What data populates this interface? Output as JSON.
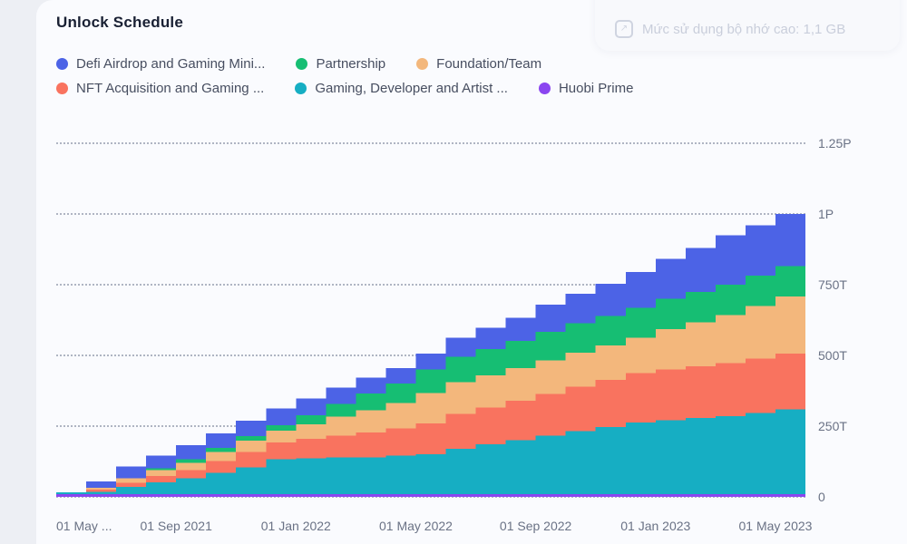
{
  "header": {
    "title": "Unlock Schedule"
  },
  "notification": {
    "text": "Mức sử dụng bộ nhớ cao: 1,1 GB",
    "icon": "external-link-icon"
  },
  "page": {
    "background": "#EDEFF4",
    "card_background": "#FAFBFE",
    "gridline_color": "#AFB5C3",
    "axis_text_color": "#6A7285"
  },
  "chart_data": {
    "type": "area",
    "variant": "stacked-step-area (monthly token unlock schedule)",
    "title": "Unlock Schedule",
    "unit": "tokens (T = trillion, P = quadrillion)",
    "grid": "dotted horizontal lines",
    "legend_position": "top-left, two rows",
    "y_max": 1250,
    "y_ticks": [
      {
        "label": "0",
        "value": 0
      },
      {
        "label": "250T",
        "value": 250
      },
      {
        "label": "500T",
        "value": 500
      },
      {
        "label": "750T",
        "value": 750
      },
      {
        "label": "1P",
        "value": 1000
      },
      {
        "label": "1.25P",
        "value": 1250
      }
    ],
    "x": [
      "May 2021",
      "Jun 2021",
      "Jul 2021",
      "Aug 2021",
      "Sep 2021",
      "Oct 2021",
      "Nov 2021",
      "Dec 2021",
      "Jan 2022",
      "Feb 2022",
      "Mar 2022",
      "Apr 2022",
      "May 2022",
      "Jun 2022",
      "Jul 2022",
      "Aug 2022",
      "Sep 2022",
      "Oct 2022",
      "Nov 2022",
      "Dec 2022",
      "Jan 2023",
      "Feb 2023",
      "Mar 2023",
      "Apr 2023",
      "May 2023"
    ],
    "x_ticks": [
      {
        "label": "01 May ...",
        "month_index": 0
      },
      {
        "label": "01 Sep 2021",
        "month_index": 4
      },
      {
        "label": "01 Jan 2022",
        "month_index": 8
      },
      {
        "label": "01 May 2022",
        "month_index": 12
      },
      {
        "label": "01 Sep 2022",
        "month_index": 16
      },
      {
        "label": "01 Jan 2023",
        "month_index": 20
      },
      {
        "label": "01 May 2023",
        "month_index": 24
      }
    ],
    "legend": [
      {
        "label": "Defi Airdrop and Gaming Mini...",
        "color": "#4C63E6"
      },
      {
        "label": "Partnership",
        "color": "#16BE73"
      },
      {
        "label": "Foundation/Team",
        "color": "#F3B77C"
      },
      {
        "label": "NFT Acquisition and Gaming ...",
        "color": "#F9735F"
      },
      {
        "label": "Gaming, Developer and Artist ...",
        "color": "#16AEC3"
      },
      {
        "label": "Huobi Prime",
        "color": "#8B46F0"
      }
    ],
    "series_note": "values in T (trillions), listed bottom-to-top of the stack, estimated from gridlines",
    "series": [
      {
        "name": "Huobi Prime",
        "color": "#8B46F0",
        "values": [
          10,
          10,
          10,
          10,
          10,
          10,
          10,
          10,
          10,
          10,
          10,
          10,
          10,
          10,
          10,
          10,
          10,
          10,
          10,
          10,
          10,
          10,
          10,
          10,
          10
        ]
      },
      {
        "name": "Gaming, Developer and Artist ...",
        "color": "#16AEC3",
        "values": [
          6,
          8,
          26,
          42,
          55,
          75,
          94,
          123,
          126,
          130,
          130,
          136,
          140,
          160,
          176,
          190,
          206,
          222,
          237,
          253,
          261,
          269,
          276,
          287,
          299
        ]
      },
      {
        "name": "NFT Acquisition and Gaming ...",
        "color": "#F9735F",
        "values": [
          0,
          8,
          13,
          21,
          29,
          42,
          55,
          59,
          69,
          76,
          88,
          96,
          110,
          123,
          130,
          139,
          148,
          157,
          166,
          175,
          179,
          183,
          187,
          192,
          198
        ]
      },
      {
        "name": "Foundation/Team",
        "color": "#F3B77C",
        "values": [
          0,
          6,
          16,
          21,
          26,
          32,
          39,
          42,
          52,
          68,
          78,
          90,
          107,
          112,
          114,
          116,
          119,
          121,
          122,
          124,
          143,
          155,
          170,
          186,
          202
        ]
      },
      {
        "name": "Partnership",
        "color": "#16BE73",
        "values": [
          0,
          0,
          0,
          7,
          13,
          14,
          16,
          19,
          32,
          45,
          60,
          68,
          84,
          90,
          93,
          96,
          100,
          103,
          105,
          107,
          107,
          107,
          107,
          107,
          107
        ]
      },
      {
        "name": "Defi Airdrop and Gaming Mini...",
        "color": "#4C63E6",
        "values": [
          0,
          23,
          42,
          45,
          49,
          51,
          55,
          59,
          58,
          57,
          56,
          55,
          55,
          67,
          74,
          82,
          96,
          105,
          113,
          126,
          141,
          156,
          175,
          178,
          184
        ]
      }
    ],
    "totals": [
      16,
      55,
      107,
      146,
      182,
      224,
      269,
      312,
      347,
      386,
      422,
      455,
      506,
      562,
      597,
      633,
      679,
      718,
      753,
      795,
      841,
      880,
      925,
      960,
      1000
    ]
  }
}
